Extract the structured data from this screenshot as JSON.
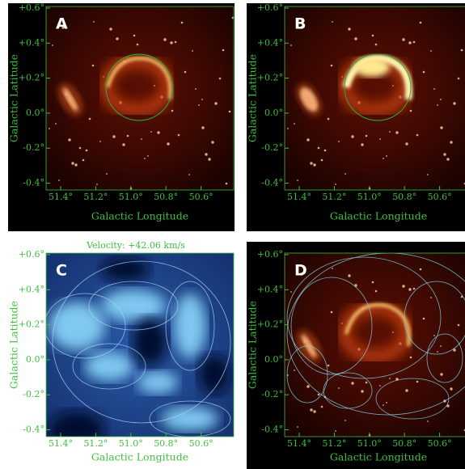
{
  "panels": [
    {
      "letter": "A",
      "x_axis_label": "Galactic Longitude",
      "y_axis_label": "Galactic Latitude",
      "x_ticks": [
        "51.4°",
        "51.2°",
        "51.0°",
        "50.8°",
        "50.6°"
      ],
      "y_ticks": [
        "+0.6°",
        "+0.4°",
        "+0.2°",
        "0.0°",
        "-0.2°",
        "-0.4°"
      ]
    },
    {
      "letter": "B",
      "x_axis_label": "Galactic Longitude",
      "y_axis_label": "Galactic Latitude",
      "x_ticks": [
        "51.4°",
        "51.2°",
        "51.0°",
        "50.8°",
        "50.6°"
      ],
      "y_ticks": [
        "+0.6°",
        "+0.4°",
        "+0.2°",
        "0.0°",
        "-0.2°",
        "-0.4°"
      ]
    },
    {
      "letter": "C",
      "caption": "Velocity: +42.06 km/s",
      "x_axis_label": "Galactic Longitude",
      "y_axis_label": "Galactic Latitude",
      "x_ticks": [
        "51.4°",
        "51.2°",
        "51.0°",
        "50.8°",
        "50.6°"
      ],
      "y_ticks": [
        "+0.6°",
        "+0.4°",
        "+0.2°",
        "0.0°",
        "-0.2°",
        "-0.4°"
      ]
    },
    {
      "letter": "D",
      "x_axis_label": "Galactic Longitude",
      "y_axis_label": "Galactic Latitude",
      "x_ticks": [
        "51.4°",
        "51.2°",
        "51.0°",
        "50.8°",
        "50.6°"
      ],
      "y_ticks": [
        "+0.6°",
        "+0.4°",
        "+0.2°",
        "0.0°",
        "-0.2°",
        "-0.4°"
      ]
    }
  ]
}
